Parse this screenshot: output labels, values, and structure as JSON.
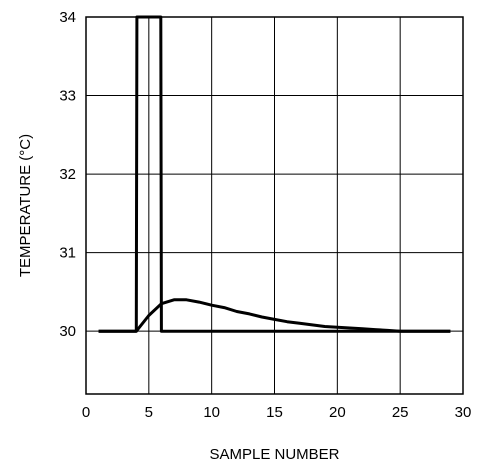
{
  "chart_data": {
    "type": "line",
    "title": "",
    "xlabel": "SAMPLE NUMBER",
    "ylabel": "TEMPERATURE (°C)",
    "xlim": [
      0,
      30
    ],
    "ylim": [
      29.2,
      34
    ],
    "xticks": [
      0,
      5,
      10,
      15,
      20,
      25,
      30
    ],
    "yticks": [
      30,
      31,
      32,
      33,
      34
    ],
    "grid": true,
    "line_color": "#000000",
    "series": [
      {
        "x": [
          1,
          4,
          4.05,
          4.4,
          5,
          5.95,
          6,
          29
        ],
        "y": [
          30,
          30,
          34,
          34,
          34,
          34,
          30,
          30
        ]
      },
      {
        "x": [
          1,
          4,
          5,
          6,
          7,
          8,
          9,
          10,
          11,
          12,
          13,
          14,
          15,
          16,
          17,
          18,
          19,
          20,
          21,
          22,
          23,
          24,
          25,
          29
        ],
        "y": [
          30,
          30,
          30.2,
          30.35,
          30.4,
          30.4,
          30.37,
          30.33,
          30.3,
          30.25,
          30.22,
          30.18,
          30.15,
          30.12,
          30.1,
          30.08,
          30.06,
          30.05,
          30.04,
          30.03,
          30.02,
          30.01,
          30.0,
          30.0
        ]
      }
    ]
  }
}
